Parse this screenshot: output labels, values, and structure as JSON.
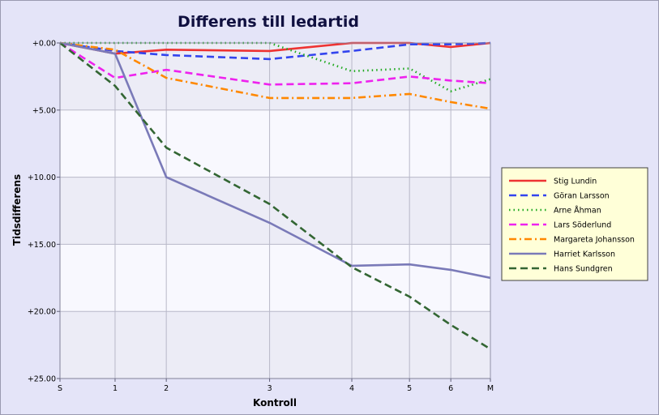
{
  "chart_data": {
    "type": "line",
    "title": "Differens till ledartid",
    "xlabel": "Kontroll",
    "ylabel": "Tidsdifferens",
    "x_positions": [
      0,
      1.28,
      2.47,
      4.87,
      6.78,
      8.12,
      9.08,
      10.0
    ],
    "x_ticks": [
      "S",
      "1",
      "2",
      "3",
      "4",
      "5",
      "6",
      "M"
    ],
    "y_ticks": [
      "+0.00",
      "+5.00",
      "+10.00",
      "+15.00",
      "+20.00",
      "+25.00"
    ],
    "ylim": [
      0,
      25
    ],
    "y_inverted": true,
    "legend_position": "right",
    "series": [
      {
        "name": "Stig Lundin",
        "color": "#ee3333",
        "dash": "solid",
        "x": [
          0,
          1.28,
          2.47,
          4.87,
          6.78,
          8.12,
          9.08,
          10.0
        ],
        "y": [
          0,
          0.8,
          0.5,
          0.6,
          0,
          0,
          0.3,
          0
        ]
      },
      {
        "name": "Göran Larsson",
        "color": "#3344ee",
        "dash": "dash",
        "x": [
          0,
          1.28,
          2.47,
          4.87,
          6.78,
          8.12,
          9.08,
          10.0
        ],
        "y": [
          0,
          0.6,
          0.9,
          1.2,
          0.6,
          0.1,
          0.1,
          0
        ]
      },
      {
        "name": "Arne Åhman",
        "color": "#22aa22",
        "dash": "dot",
        "x": [
          0,
          1.28,
          2.47,
          4.87,
          6.78,
          8.12,
          9.08,
          10.0
        ],
        "y": [
          0,
          0,
          0,
          0,
          2.1,
          1.9,
          3.6,
          2.7
        ]
      },
      {
        "name": "Lars Söderlund",
        "color": "#ee22ee",
        "dash": "dash",
        "x": [
          0,
          1.28,
          2.47,
          4.87,
          6.78,
          8.12,
          9.08,
          10.0
        ],
        "y": [
          0,
          2.6,
          2.0,
          3.1,
          3.0,
          2.5,
          2.8,
          3.0
        ]
      },
      {
        "name": "Margareta Johansson",
        "color": "#ff8800",
        "dash": "dashdot",
        "x": [
          0,
          1.28,
          2.47,
          4.87,
          6.78,
          8.12,
          9.08,
          10.0
        ],
        "y": [
          0,
          0.5,
          2.6,
          4.1,
          4.1,
          3.8,
          4.4,
          4.9
        ]
      },
      {
        "name": "Harriet Karlsson",
        "color": "#7a7ab8",
        "dash": "solid",
        "x": [
          0,
          1.28,
          2.47,
          4.87,
          6.78,
          8.12,
          9.08,
          10.0
        ],
        "y": [
          0,
          0.8,
          10.0,
          13.4,
          16.6,
          16.5,
          16.9,
          17.5
        ]
      },
      {
        "name": "Hans Sundgren",
        "color": "#336633",
        "dash": "dash",
        "x": [
          0,
          1.28,
          2.47,
          4.87,
          6.78,
          8.12,
          9.08,
          10.0
        ],
        "y": [
          0,
          3.2,
          7.8,
          12.0,
          16.7,
          18.9,
          21.0,
          22.8
        ]
      }
    ]
  }
}
